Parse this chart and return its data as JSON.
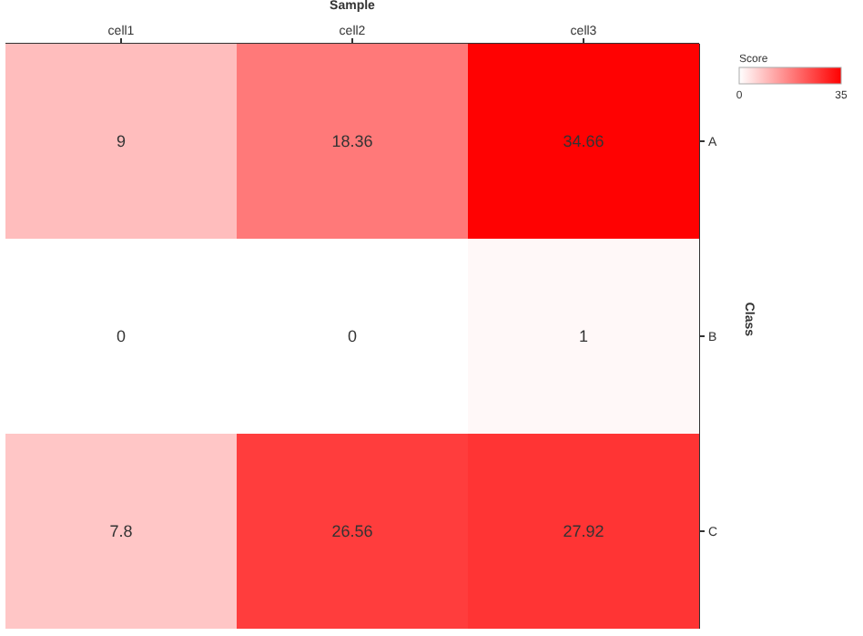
{
  "chart_data": {
    "type": "heatmap",
    "xlabel": "Sample",
    "ylabel": "Class",
    "legend_title": "Score",
    "categories": [
      "cell1",
      "cell2",
      "cell3"
    ],
    "y_categories": [
      "A",
      "B",
      "C"
    ],
    "cells": [
      [
        9,
        18.36,
        34.66
      ],
      [
        0,
        0,
        1
      ],
      [
        7.8,
        26.56,
        27.92
      ]
    ],
    "clim": [
      0,
      35
    ],
    "cticks": [
      0,
      35
    ],
    "color": "#ff0000",
    "data_labels": true
  }
}
